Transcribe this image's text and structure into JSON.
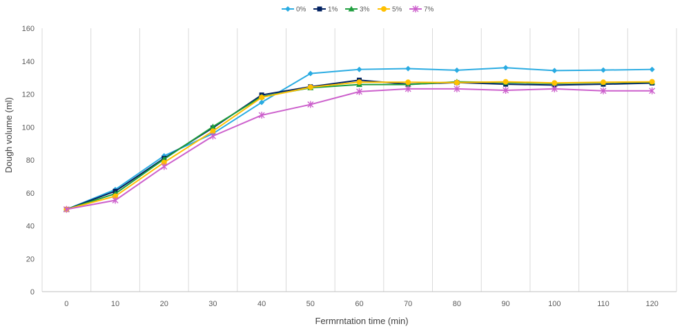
{
  "chart_data": {
    "type": "line",
    "title": "",
    "xlabel": "Fermrntation time (min)",
    "ylabel": "Dough volume (ml)",
    "x": [
      0,
      10,
      20,
      30,
      40,
      50,
      60,
      70,
      80,
      90,
      100,
      110,
      120
    ],
    "ylim": [
      0,
      160
    ],
    "yticks": [
      0,
      20,
      40,
      60,
      80,
      100,
      120,
      140,
      160
    ],
    "grid": "vertical",
    "legend_position": "top-center",
    "series": [
      {
        "name": "0%",
        "color": "#29ABE2",
        "marker": "diamond",
        "values": [
          50,
          62,
          82.5,
          96,
          115,
          132.5,
          135,
          135.5,
          134.5,
          136,
          134.3,
          134.6,
          135
        ]
      },
      {
        "name": "1%",
        "color": "#002060",
        "marker": "square",
        "values": [
          50,
          61,
          81,
          99.5,
          119.5,
          124.5,
          128.5,
          126,
          127,
          126,
          125.5,
          126,
          126.7
        ]
      },
      {
        "name": "3%",
        "color": "#1E9E3E",
        "marker": "triangle",
        "values": [
          50,
          59.5,
          80.5,
          100.2,
          118.5,
          123.8,
          125.8,
          125.8,
          127.5,
          127,
          126.5,
          127,
          127.3
        ]
      },
      {
        "name": "5%",
        "color": "#FFC000",
        "marker": "circle",
        "values": [
          50,
          58,
          78.5,
          97.5,
          118,
          124.2,
          127.3,
          127.2,
          127,
          127.5,
          126.8,
          127.2,
          127.5
        ]
      },
      {
        "name": "7%",
        "color": "#CC5FCC",
        "marker": "star",
        "values": [
          50,
          55.5,
          76,
          94.5,
          107.2,
          113.7,
          121.5,
          123.2,
          123.2,
          122.3,
          123.2,
          122,
          122
        ]
      }
    ]
  }
}
